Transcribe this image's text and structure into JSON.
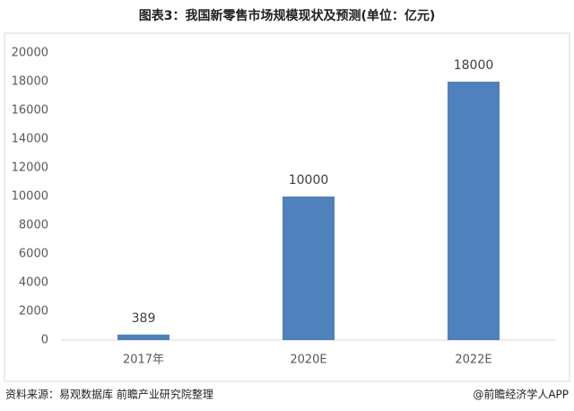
{
  "chart_data": {
    "type": "bar",
    "title": "图表3：我国新零售市场规模现状及预测(单位：亿元)",
    "categories": [
      "2017年",
      "2020E",
      "2022E"
    ],
    "values": [
      389,
      10000,
      18000
    ],
    "color": "#4f81bd",
    "ylim": [
      0,
      20000
    ],
    "yticks": [
      0,
      2000,
      4000,
      6000,
      8000,
      10000,
      12000,
      14000,
      16000,
      18000,
      20000
    ],
    "grid": false,
    "source": "资料来源：易观数据库 前瞻产业研究院整理",
    "credit": "@前瞻经济学人APP"
  }
}
